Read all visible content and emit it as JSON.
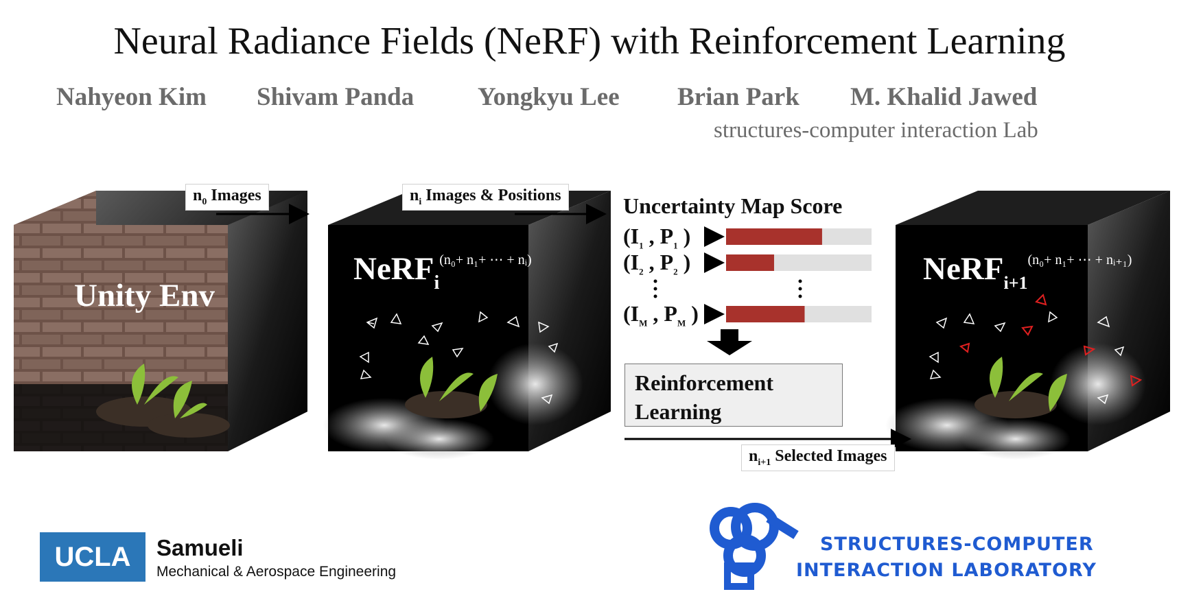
{
  "header": {
    "title": "Neural Radiance Fields (NeRF) with Reinforcement Learning",
    "authors": [
      "Nahyeon Kim",
      "Shivam Panda",
      "Yongkyu Lee",
      "Brian Park",
      "M. Khalid Jawed"
    ],
    "lab": "structures-computer interaction Lab"
  },
  "diagram": {
    "unity_env_label": "Unity Env",
    "n0_images": {
      "symbol": "n",
      "subscript": "0",
      "text": " Images"
    },
    "ni_images_positions": {
      "symbol": "n",
      "subscript": "i",
      "text": " Images & Positions"
    },
    "nerf_i": {
      "label": "NeRF",
      "subscript": "i",
      "superscript": "(n₀+ n₁+ ⋯ + nᵢ)"
    },
    "nerf_i1": {
      "label": "NeRF",
      "subscript": "i+1",
      "superscript": "(n₀+ n₁+ ⋯ + nᵢ₊₁)"
    },
    "uncertainty_title": "Uncertainty Map Score",
    "scores": [
      {
        "i": "1",
        "p": "1",
        "fraction": 0.66
      },
      {
        "i": "2",
        "p": "2",
        "fraction": 0.33
      },
      {
        "i": "M",
        "p": "M",
        "fraction": 0.54
      }
    ],
    "rl_box": [
      "Reinforcement",
      "Learning"
    ],
    "selected": {
      "symbol": "n",
      "subscript": "i+1",
      "text": " Selected Images"
    },
    "colors": {
      "bar_fill": "#a8322c",
      "bar_track": "#e0e0e0",
      "camera_red": "#e02020"
    }
  },
  "footer": {
    "ucla": "UCLA",
    "samueli": "Samueli",
    "department": "Mechanical & Aerospace Engineering",
    "sci_line1": "STRUCTURES-COMPUTER",
    "sci_line2": "INTERACTION LABORATORY",
    "sci_color": "#1f5bd1"
  }
}
